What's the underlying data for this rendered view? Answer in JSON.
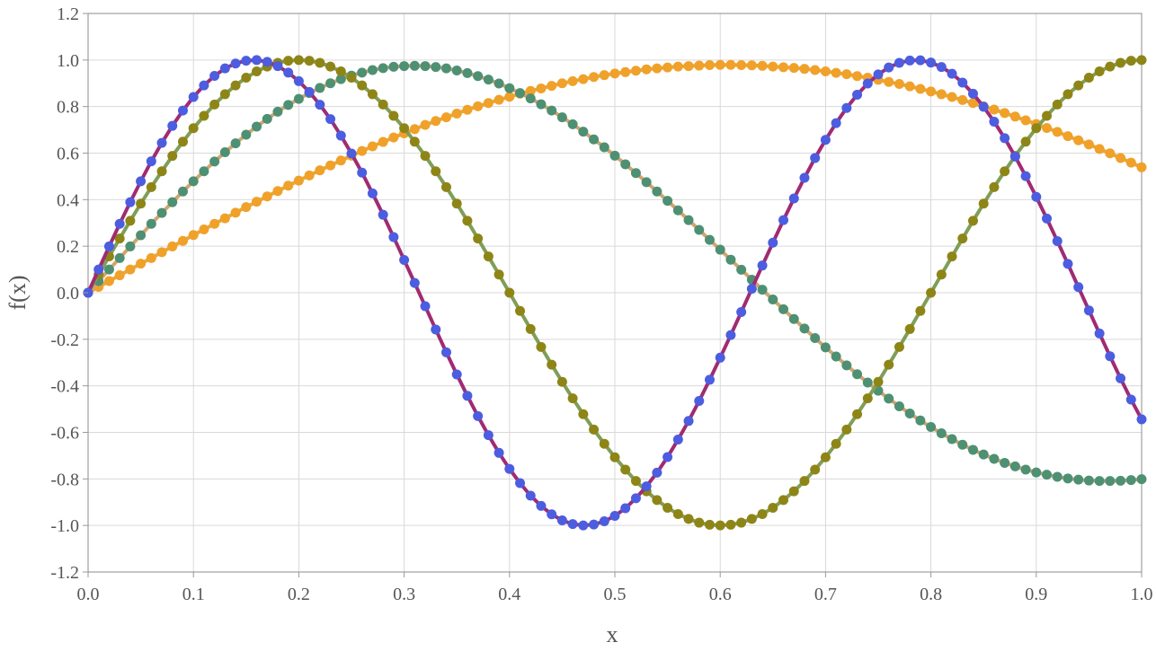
{
  "chart_data": {
    "type": "line",
    "xlabel": "x",
    "ylabel": "f(x)",
    "xlim": [
      0,
      1
    ],
    "ylim": [
      -1.2,
      1.2
    ],
    "x_ticks": [
      "0.0",
      "0.1",
      "0.2",
      "0.3",
      "0.4",
      "0.5",
      "0.6",
      "0.7",
      "0.8",
      "0.9",
      "1.0"
    ],
    "y_ticks": [
      "1.2",
      "1.0",
      "0.8",
      "0.6",
      "0.4",
      "0.2",
      "0.0",
      "-0.2",
      "-0.4",
      "-0.6",
      "-0.8",
      "-1.0",
      "-1.2"
    ],
    "grid": true,
    "legend": "none",
    "x": [
      0.0,
      0.01,
      0.02,
      0.03,
      0.04,
      0.05,
      0.06,
      0.07,
      0.08,
      0.09,
      0.1,
      0.11,
      0.12,
      0.13,
      0.14,
      0.15,
      0.16,
      0.17,
      0.18,
      0.19,
      0.2,
      0.21,
      0.22,
      0.23,
      0.24,
      0.25,
      0.26,
      0.27,
      0.28,
      0.29,
      0.3,
      0.31,
      0.32,
      0.33,
      0.34,
      0.35,
      0.36,
      0.37,
      0.38,
      0.39,
      0.4,
      0.41,
      0.42,
      0.43,
      0.44,
      0.45,
      0.46,
      0.47,
      0.48,
      0.49,
      0.5,
      0.51,
      0.52,
      0.53,
      0.54,
      0.55,
      0.56,
      0.57,
      0.58,
      0.59,
      0.6,
      0.61,
      0.62,
      0.63,
      0.64,
      0.65,
      0.66,
      0.67,
      0.68,
      0.69,
      0.7,
      0.71,
      0.72,
      0.73,
      0.74,
      0.75,
      0.76,
      0.77,
      0.78,
      0.79,
      0.8,
      0.81,
      0.82,
      0.83,
      0.84,
      0.85,
      0.86,
      0.87,
      0.88,
      0.89,
      0.9,
      0.91,
      0.92,
      0.93,
      0.94,
      0.95,
      0.96,
      0.97,
      0.98,
      0.99,
      1.0
    ],
    "series": [
      {
        "line_color": "#E8A83A",
        "marker_color": "#F0A12A",
        "values": [
          0.0,
          0.025,
          0.05,
          0.075,
          0.1,
          0.125,
          0.149,
          0.174,
          0.199,
          0.223,
          0.248,
          0.272,
          0.296,
          0.32,
          0.344,
          0.368,
          0.391,
          0.414,
          0.437,
          0.46,
          0.482,
          0.504,
          0.526,
          0.547,
          0.568,
          0.589,
          0.609,
          0.629,
          0.648,
          0.667,
          0.685,
          0.703,
          0.721,
          0.738,
          0.754,
          0.77,
          0.786,
          0.801,
          0.815,
          0.829,
          0.842,
          0.855,
          0.867,
          0.878,
          0.889,
          0.9,
          0.909,
          0.918,
          0.927,
          0.935,
          0.942,
          0.948,
          0.954,
          0.96,
          0.964,
          0.968,
          0.972,
          0.974,
          0.976,
          0.978,
          0.979,
          0.979,
          0.978,
          0.977,
          0.975,
          0.972,
          0.969,
          0.966,
          0.962,
          0.957,
          0.951,
          0.945,
          0.939,
          0.931,
          0.924,
          0.915,
          0.906,
          0.897,
          0.887,
          0.876,
          0.865,
          0.853,
          0.841,
          0.828,
          0.815,
          0.801,
          0.787,
          0.772,
          0.757,
          0.741,
          0.725,
          0.708,
          0.691,
          0.673,
          0.655,
          0.637,
          0.618,
          0.599,
          0.579,
          0.559,
          0.539
        ]
      },
      {
        "line_color": "#D4A46E",
        "marker_color": "#4E9073",
        "values": [
          0.0,
          0.05,
          0.1,
          0.149,
          0.199,
          0.247,
          0.296,
          0.343,
          0.389,
          0.435,
          0.479,
          0.522,
          0.564,
          0.604,
          0.642,
          0.679,
          0.714,
          0.747,
          0.778,
          0.807,
          0.833,
          0.858,
          0.88,
          0.9,
          0.918,
          0.933,
          0.946,
          0.957,
          0.965,
          0.971,
          0.974,
          0.975,
          0.974,
          0.97,
          0.964,
          0.955,
          0.944,
          0.931,
          0.916,
          0.899,
          0.879,
          0.858,
          0.835,
          0.81,
          0.783,
          0.754,
          0.724,
          0.692,
          0.659,
          0.625,
          0.589,
          0.552,
          0.514,
          0.475,
          0.435,
          0.395,
          0.354,
          0.312,
          0.27,
          0.227,
          0.185,
          0.142,
          0.099,
          0.056,
          0.013,
          -0.029,
          -0.071,
          -0.113,
          -0.154,
          -0.195,
          -0.235,
          -0.274,
          -0.312,
          -0.35,
          -0.386,
          -0.421,
          -0.455,
          -0.488,
          -0.519,
          -0.549,
          -0.577,
          -0.604,
          -0.629,
          -0.653,
          -0.675,
          -0.695,
          -0.714,
          -0.731,
          -0.746,
          -0.76,
          -0.772,
          -0.782,
          -0.791,
          -0.798,
          -0.803,
          -0.807,
          -0.809,
          -0.809,
          -0.808,
          -0.805,
          -0.801
        ]
      },
      {
        "line_color": "#7F9E58",
        "marker_color": "#8E8517",
        "values": [
          0.0,
          0.0785,
          0.1564,
          0.233,
          0.309,
          0.383,
          0.454,
          0.522,
          0.588,
          0.649,
          0.707,
          0.76,
          0.809,
          0.853,
          0.891,
          0.924,
          0.951,
          0.972,
          0.988,
          0.997,
          1.0,
          0.997,
          0.988,
          0.972,
          0.951,
          0.924,
          0.891,
          0.853,
          0.809,
          0.76,
          0.707,
          0.649,
          0.588,
          0.522,
          0.454,
          0.383,
          0.309,
          0.233,
          0.156,
          0.078,
          0.0,
          -0.078,
          -0.156,
          -0.233,
          -0.309,
          -0.383,
          -0.454,
          -0.522,
          -0.588,
          -0.649,
          -0.707,
          -0.76,
          -0.809,
          -0.853,
          -0.891,
          -0.924,
          -0.951,
          -0.972,
          -0.988,
          -0.997,
          -1.0,
          -0.997,
          -0.988,
          -0.972,
          -0.951,
          -0.924,
          -0.891,
          -0.853,
          -0.809,
          -0.76,
          -0.707,
          -0.649,
          -0.588,
          -0.522,
          -0.454,
          -0.383,
          -0.309,
          -0.233,
          -0.156,
          -0.078,
          0.0,
          0.078,
          0.156,
          0.233,
          0.309,
          0.383,
          0.454,
          0.522,
          0.588,
          0.649,
          0.707,
          0.76,
          0.809,
          0.853,
          0.891,
          0.924,
          0.951,
          0.972,
          0.988,
          0.997,
          1.0
        ]
      },
      {
        "line_color": "#A02B72",
        "marker_color": "#4C5DE0",
        "values": [
          0.0,
          0.1,
          0.199,
          0.296,
          0.389,
          0.479,
          0.565,
          0.644,
          0.717,
          0.783,
          0.841,
          0.891,
          0.932,
          0.964,
          0.985,
          0.997,
          1.0,
          0.992,
          0.974,
          0.946,
          0.909,
          0.863,
          0.808,
          0.746,
          0.675,
          0.598,
          0.516,
          0.427,
          0.335,
          0.239,
          0.141,
          0.042,
          -0.058,
          -0.158,
          -0.256,
          -0.351,
          -0.443,
          -0.53,
          -0.612,
          -0.688,
          -0.757,
          -0.818,
          -0.872,
          -0.916,
          -0.952,
          -0.978,
          -0.994,
          -1.0,
          -0.996,
          -0.982,
          -0.959,
          -0.926,
          -0.883,
          -0.832,
          -0.773,
          -0.706,
          -0.631,
          -0.551,
          -0.465,
          -0.374,
          -0.279,
          -0.182,
          -0.083,
          0.017,
          0.117,
          0.215,
          0.312,
          0.405,
          0.494,
          0.579,
          0.657,
          0.729,
          0.794,
          0.851,
          0.899,
          0.938,
          0.968,
          0.988,
          0.998,
          0.999,
          0.989,
          0.97,
          0.941,
          0.903,
          0.855,
          0.799,
          0.735,
          0.664,
          0.585,
          0.501,
          0.412,
          0.319,
          0.222,
          0.124,
          0.024,
          -0.076,
          -0.175,
          -0.273,
          -0.368,
          -0.459,
          -0.544
        ]
      }
    ]
  }
}
